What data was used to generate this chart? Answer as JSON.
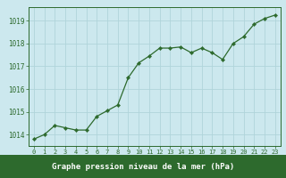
{
  "x": [
    0,
    1,
    2,
    3,
    4,
    5,
    6,
    7,
    8,
    9,
    10,
    11,
    12,
    13,
    14,
    15,
    16,
    17,
    18,
    19,
    20,
    21,
    22,
    23
  ],
  "y": [
    1013.8,
    1014.0,
    1014.4,
    1014.3,
    1014.2,
    1014.2,
    1014.8,
    1015.05,
    1015.3,
    1016.5,
    1017.15,
    1017.45,
    1017.8,
    1017.8,
    1017.85,
    1017.6,
    1017.8,
    1017.6,
    1017.3,
    1018.0,
    1018.3,
    1018.85,
    1019.1,
    1019.25
  ],
  "line_color": "#2d6a2d",
  "marker_color": "#2d6a2d",
  "bg_color": "#cce8ee",
  "grid_color": "#b0d4da",
  "xlabel": "Graphe pression niveau de la mer (hPa)",
  "xlabel_bar_color": "#2d6a2d",
  "xlabel_text_color": "#ffffff",
  "ylim_min": 1013.5,
  "ylim_max": 1019.6,
  "yticks": [
    1014,
    1015,
    1016,
    1017,
    1018,
    1019
  ],
  "xticks": [
    0,
    1,
    2,
    3,
    4,
    5,
    6,
    7,
    8,
    9,
    10,
    11,
    12,
    13,
    14,
    15,
    16,
    17,
    18,
    19,
    20,
    21,
    22,
    23
  ],
  "tick_color": "#2d6a2d",
  "spine_color": "#2d6a2d"
}
